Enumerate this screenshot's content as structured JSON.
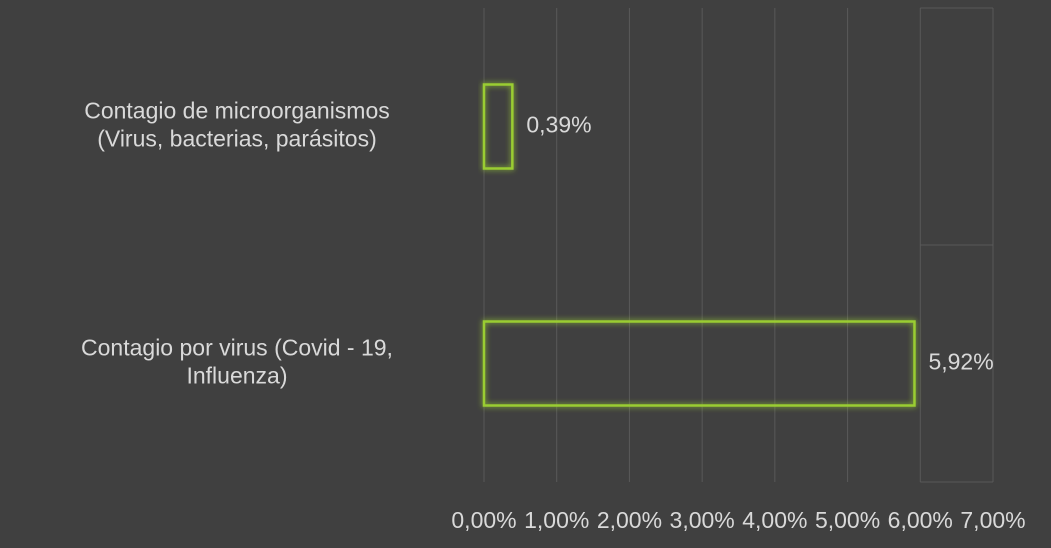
{
  "chart_data": {
    "type": "hbar",
    "categories": [
      "Contagio de microorganismos\n(Virus, bacterias, parásitos)",
      "Contagio por virus  (Covid - 19,\nInfluenza)"
    ],
    "values": [
      0.39,
      5.92
    ],
    "value_labels": [
      "0,39%",
      "5,92%"
    ],
    "color": "#9acd32",
    "xlim": [
      0,
      7
    ],
    "xticks": [
      {
        "value": 0,
        "label": "0,00%"
      },
      {
        "value": 1,
        "label": "1,00%"
      },
      {
        "value": 2,
        "label": "2,00%"
      },
      {
        "value": 3,
        "label": "3,00%"
      },
      {
        "value": 4,
        "label": "4,00%"
      },
      {
        "value": 5,
        "label": "5,00%"
      },
      {
        "value": 6,
        "label": "6,00%"
      },
      {
        "value": 7,
        "label": "7,00%"
      }
    ],
    "grid": true
  }
}
